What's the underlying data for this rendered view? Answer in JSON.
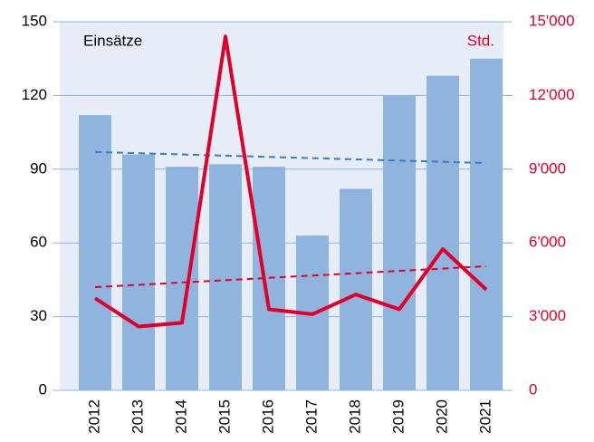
{
  "chart_data": {
    "type": "bar_line",
    "categories": [
      "2012",
      "2013",
      "2014",
      "2015",
      "2016",
      "2017",
      "2018",
      "2019",
      "2020",
      "2021"
    ],
    "series": [
      {
        "name": "Einsätze",
        "type": "bar",
        "color": "#8fb5df",
        "axis": "y",
        "values": [
          112,
          96,
          91,
          92,
          91,
          63,
          82,
          120,
          128,
          135
        ]
      },
      {
        "name": "Std.",
        "type": "line",
        "color": "#e2002a",
        "axis": "y2",
        "values": [
          3750,
          2600,
          2750,
          14400,
          3300,
          3100,
          3900,
          3300,
          5750,
          4100
        ]
      }
    ],
    "trendlines": [
      {
        "axis": "y",
        "color": "#3a7cc0",
        "values": [
          97,
          92.5
        ]
      },
      {
        "axis": "y2",
        "color": "#e2002a",
        "values": [
          4200,
          5050
        ]
      }
    ],
    "ylim": [
      0,
      150
    ],
    "yticks": [
      0,
      30,
      60,
      90,
      120,
      150
    ],
    "y2lim": [
      0,
      15000
    ],
    "y2ticks": [
      0,
      {
        "value": 3000,
        "label": "3'000"
      },
      {
        "value": 6000,
        "label": "6'000"
      },
      {
        "value": 9000,
        "label": "9'000"
      },
      {
        "value": 12000,
        "label": "12'000"
      },
      {
        "value": 15000,
        "label": "15'000"
      }
    ],
    "grid": true
  }
}
